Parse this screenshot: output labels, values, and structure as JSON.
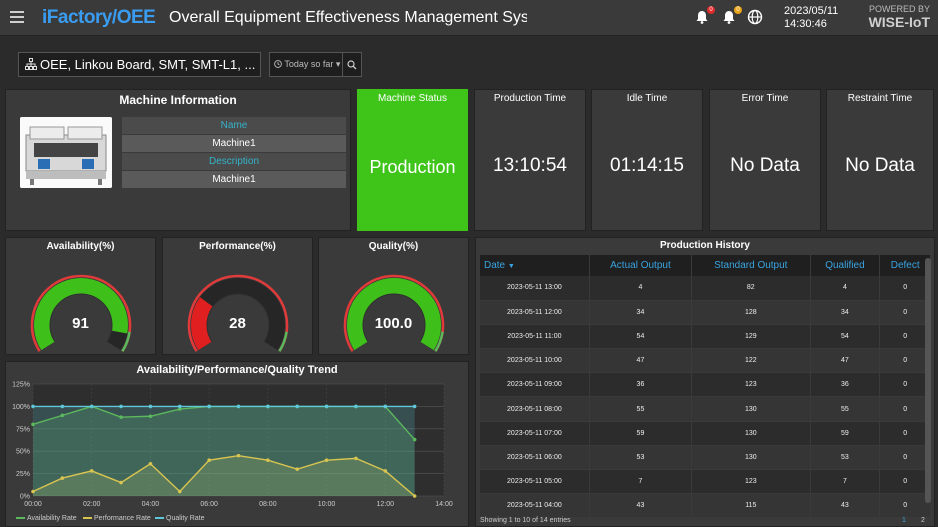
{
  "header": {
    "brand_left": "iFactory",
    "brand_slash": "/",
    "brand_right": "OEE",
    "title": "Overall Equipment Effectiveness Management System",
    "notif_badge_1": "0",
    "notif_badge_2": "0",
    "date": "2023/05/11",
    "time": "14:30:46",
    "powered_by": "POWERED BY",
    "powered_brand": "WISE-IoT"
  },
  "filter": {
    "path": "OEE, Linkou Board, SMT, SMT-L1, ...",
    "range": "Today so far"
  },
  "machine_info": {
    "title": "Machine Information",
    "name_label": "Name",
    "name_value": "Machine1",
    "desc_label": "Description",
    "desc_value": "Machine1"
  },
  "stats": {
    "status": {
      "title": "Machine Status",
      "value": "Production",
      "color": "#3fc41a"
    },
    "production": {
      "title": "Production Time",
      "value": "13:10:54"
    },
    "idle": {
      "title": "Idle Time",
      "value": "01:14:15"
    },
    "error": {
      "title": "Error Time",
      "value": "No Data"
    },
    "restraint": {
      "title": "Restraint Time",
      "value": "No Data"
    }
  },
  "gauges": [
    {
      "title": "Availability(%)",
      "value": "91",
      "fraction": 0.91
    },
    {
      "title": "Performance(%)",
      "value": "28",
      "fraction": 0.28
    },
    {
      "title": "Quality(%)",
      "value": "100.0",
      "fraction": 1.0
    }
  ],
  "trend": {
    "title": "Availability/Performance/Quality Trend",
    "legend": [
      "Availability Rate",
      "Performance Rate",
      "Quality Rate"
    ]
  },
  "chart_data": {
    "type": "line",
    "title": "Availability/Performance/Quality Trend",
    "x": [
      "00:00",
      "01:00",
      "02:00",
      "03:00",
      "04:00",
      "05:00",
      "06:00",
      "07:00",
      "08:00",
      "09:00",
      "10:00",
      "11:00",
      "12:00",
      "13:00"
    ],
    "x_ticks": [
      "00:00",
      "02:00",
      "04:00",
      "06:00",
      "08:00",
      "10:00",
      "12:00",
      "14:00"
    ],
    "y_ticks": [
      "0%",
      "25%",
      "50%",
      "75%",
      "100%",
      "125%"
    ],
    "ylim": [
      0,
      125
    ],
    "xlim": [
      0,
      14
    ],
    "series": [
      {
        "name": "Availability Rate",
        "color": "#5cb85c",
        "values": [
          80,
          90,
          100,
          88,
          89,
          97,
          100,
          100,
          100,
          100,
          100,
          100,
          100,
          63
        ]
      },
      {
        "name": "Performance Rate",
        "color": "#d8c450",
        "values": [
          5,
          20,
          28,
          15,
          36,
          5,
          40,
          45,
          40,
          30,
          40,
          42,
          28,
          0
        ]
      },
      {
        "name": "Quality Rate",
        "color": "#5fc8d8",
        "values": [
          100,
          100,
          100,
          100,
          100,
          100,
          100,
          100,
          100,
          100,
          100,
          100,
          100,
          100
        ]
      }
    ]
  },
  "history": {
    "title": "Production History",
    "columns": [
      "Date",
      "Actual Output",
      "Standard Output",
      "Qualified",
      "Defect"
    ],
    "rows": [
      [
        "2023-05-11 13:00",
        "4",
        "82",
        "4",
        "0"
      ],
      [
        "2023-05-11 12:00",
        "34",
        "128",
        "34",
        "0"
      ],
      [
        "2023-05-11 11:00",
        "54",
        "129",
        "54",
        "0"
      ],
      [
        "2023-05-11 10:00",
        "47",
        "122",
        "47",
        "0"
      ],
      [
        "2023-05-11 09:00",
        "36",
        "123",
        "36",
        "0"
      ],
      [
        "2023-05-11 08:00",
        "55",
        "130",
        "55",
        "0"
      ],
      [
        "2023-05-11 07:00",
        "59",
        "130",
        "59",
        "0"
      ],
      [
        "2023-05-11 06:00",
        "53",
        "130",
        "53",
        "0"
      ],
      [
        "2023-05-11 05:00",
        "7",
        "123",
        "7",
        "0"
      ],
      [
        "2023-05-11 04:00",
        "43",
        "115",
        "43",
        "0"
      ]
    ],
    "footer": "Showing 1 to 10 of 14 entries",
    "pages": [
      "1",
      "2"
    ]
  }
}
